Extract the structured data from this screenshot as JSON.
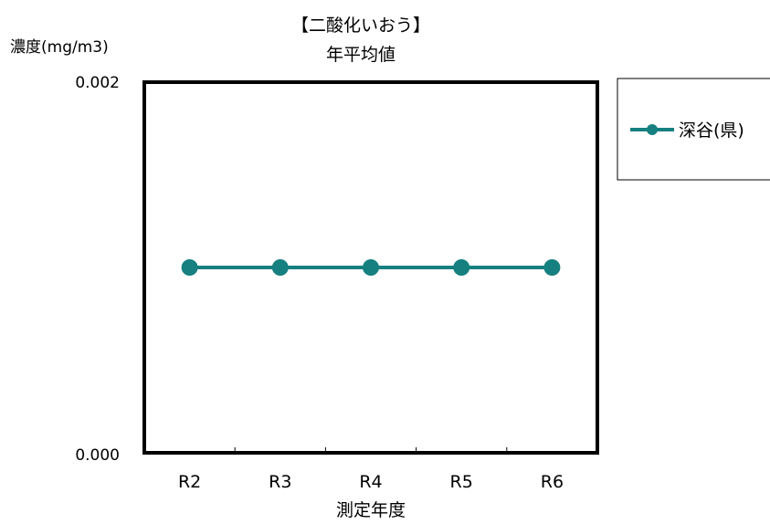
{
  "chart_data": {
    "type": "line",
    "title_line1": "【二酸化いおう】",
    "title_line2": "年平均値",
    "ylabel": "濃度(mg/m3)",
    "xlabel": "測定年度",
    "categories": [
      "R2",
      "R3",
      "R4",
      "R5",
      "R6"
    ],
    "y_ticks": [
      "0.002",
      "0.000"
    ],
    "ylim": [
      0,
      0.002
    ],
    "series": [
      {
        "name": "深谷(県)",
        "color": "#168080",
        "values": [
          0.001,
          0.001,
          0.001,
          0.001,
          0.001
        ]
      }
    ],
    "legend_position": "right",
    "grid": false
  }
}
